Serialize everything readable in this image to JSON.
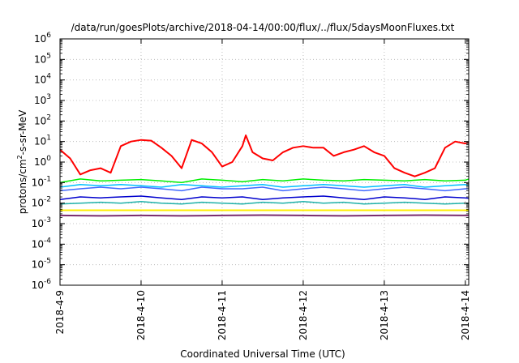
{
  "chart_data": {
    "type": "line",
    "title": "/data/run/goesPlots/archive/2018-04-14/00:00/flux/../flux/5daysMoonFluxes.txt",
    "xlabel": "Coordinated Universal Time (UTC)",
    "ylabel_parts": {
      "pre": "protons/cm",
      "sup": "2",
      "post": "-s-sr-MeV"
    },
    "y_scale": "log",
    "ylim": [
      1e-06,
      1000000.0
    ],
    "y_ticks": [
      {
        "base": "10",
        "exp": "-6",
        "value": 1e-06
      },
      {
        "base": "10",
        "exp": "-5",
        "value": 1e-05
      },
      {
        "base": "10",
        "exp": "-4",
        "value": 0.0001
      },
      {
        "base": "10",
        "exp": "-3",
        "value": 0.001
      },
      {
        "base": "10",
        "exp": "-2",
        "value": 0.01
      },
      {
        "base": "10",
        "exp": "-1",
        "value": 0.1
      },
      {
        "base": "10",
        "exp": "0",
        "value": 1
      },
      {
        "base": "10",
        "exp": "1",
        "value": 10
      },
      {
        "base": "10",
        "exp": "2",
        "value": 100
      },
      {
        "base": "10",
        "exp": "3",
        "value": 1000
      },
      {
        "base": "10",
        "exp": "4",
        "value": 10000
      },
      {
        "base": "10",
        "exp": "5",
        "value": 100000
      },
      {
        "base": "10",
        "exp": "6",
        "value": 1000000
      }
    ],
    "x_range_days": [
      "2018-04-09",
      "2018-04-14T01:00"
    ],
    "x_ticks": [
      {
        "label": "2018-4-9",
        "date": "2018-04-09"
      },
      {
        "label": "2018-4-10",
        "date": "2018-04-10"
      },
      {
        "label": "2018-4-11",
        "date": "2018-04-11"
      },
      {
        "label": "2018-4-12",
        "date": "2018-04-12"
      },
      {
        "label": "2018-4-13",
        "date": "2018-04-13"
      },
      {
        "label": "2018-4-14",
        "date": "2018-04-14"
      }
    ],
    "grid": true,
    "series": [
      {
        "color": "#ff0000",
        "width": 2,
        "x": [
          "2018-04-09T00:00",
          "2018-04-09T03:00",
          "2018-04-09T06:00",
          "2018-04-09T09:00",
          "2018-04-09T12:00",
          "2018-04-09T15:00",
          "2018-04-09T18:00",
          "2018-04-09T21:00",
          "2018-04-10T00:00",
          "2018-04-10T03:00",
          "2018-04-10T06:00",
          "2018-04-10T09:00",
          "2018-04-10T12:00",
          "2018-04-10T15:00",
          "2018-04-10T18:00",
          "2018-04-10T21:00",
          "2018-04-11T00:00",
          "2018-04-11T03:00",
          "2018-04-11T06:00",
          "2018-04-11T07:00",
          "2018-04-11T09:00",
          "2018-04-11T12:00",
          "2018-04-11T15:00",
          "2018-04-11T18:00",
          "2018-04-11T21:00",
          "2018-04-12T00:00",
          "2018-04-12T03:00",
          "2018-04-12T06:00",
          "2018-04-12T09:00",
          "2018-04-12T12:00",
          "2018-04-12T15:00",
          "2018-04-12T18:00",
          "2018-04-12T21:00",
          "2018-04-13T00:00",
          "2018-04-13T03:00",
          "2018-04-13T06:00",
          "2018-04-13T09:00",
          "2018-04-13T12:00",
          "2018-04-13T15:00",
          "2018-04-13T18:00",
          "2018-04-13T21:00",
          "2018-04-14T00:00",
          "2018-04-14T01:00"
        ],
        "values": [
          4,
          1.5,
          0.25,
          0.4,
          0.5,
          0.3,
          6,
          10,
          12,
          11,
          5,
          2,
          0.5,
          12,
          8,
          3,
          0.6,
          1,
          6,
          20,
          3,
          1.5,
          1.2,
          3,
          5,
          6,
          5,
          5,
          2,
          3,
          4,
          6,
          3,
          2,
          0.5,
          0.3,
          0.2,
          0.3,
          0.5,
          5,
          10,
          8,
          9
        ]
      },
      {
        "color": "#00ee00",
        "width": 1.5,
        "x": [
          "2018-04-09T00:00",
          "2018-04-09T06:00",
          "2018-04-09T12:00",
          "2018-04-09T18:00",
          "2018-04-10T00:00",
          "2018-04-10T06:00",
          "2018-04-10T12:00",
          "2018-04-10T18:00",
          "2018-04-11T00:00",
          "2018-04-11T06:00",
          "2018-04-11T12:00",
          "2018-04-11T18:00",
          "2018-04-12T00:00",
          "2018-04-12T06:00",
          "2018-04-12T12:00",
          "2018-04-12T18:00",
          "2018-04-13T00:00",
          "2018-04-13T06:00",
          "2018-04-13T12:00",
          "2018-04-13T18:00",
          "2018-04-14T00:00",
          "2018-04-14T01:00"
        ],
        "values": [
          0.1,
          0.15,
          0.12,
          0.13,
          0.14,
          0.12,
          0.1,
          0.15,
          0.13,
          0.11,
          0.14,
          0.12,
          0.15,
          0.13,
          0.12,
          0.14,
          0.13,
          0.12,
          0.14,
          0.12,
          0.13,
          0.15
        ]
      },
      {
        "color": "#00bfff",
        "width": 1.5,
        "x": [
          "2018-04-09T00:00",
          "2018-04-09T06:00",
          "2018-04-09T12:00",
          "2018-04-09T18:00",
          "2018-04-10T00:00",
          "2018-04-10T06:00",
          "2018-04-10T12:00",
          "2018-04-10T18:00",
          "2018-04-11T00:00",
          "2018-04-11T06:00",
          "2018-04-11T12:00",
          "2018-04-11T18:00",
          "2018-04-12T00:00",
          "2018-04-12T06:00",
          "2018-04-12T12:00",
          "2018-04-12T18:00",
          "2018-04-13T00:00",
          "2018-04-13T06:00",
          "2018-04-13T12:00",
          "2018-04-13T18:00",
          "2018-04-14T00:00",
          "2018-04-14T01:00"
        ],
        "values": [
          0.06,
          0.08,
          0.07,
          0.08,
          0.07,
          0.06,
          0.08,
          0.07,
          0.06,
          0.07,
          0.08,
          0.06,
          0.07,
          0.08,
          0.07,
          0.06,
          0.07,
          0.08,
          0.06,
          0.07,
          0.08,
          0.07
        ]
      },
      {
        "color": "#4169ff",
        "width": 1.5,
        "x": [
          "2018-04-09T00:00",
          "2018-04-09T06:00",
          "2018-04-09T12:00",
          "2018-04-09T18:00",
          "2018-04-10T00:00",
          "2018-04-10T06:00",
          "2018-04-10T12:00",
          "2018-04-10T18:00",
          "2018-04-11T00:00",
          "2018-04-11T06:00",
          "2018-04-11T12:00",
          "2018-04-11T18:00",
          "2018-04-12T00:00",
          "2018-04-12T06:00",
          "2018-04-12T12:00",
          "2018-04-12T18:00",
          "2018-04-13T00:00",
          "2018-04-13T06:00",
          "2018-04-13T12:00",
          "2018-04-13T18:00",
          "2018-04-14T00:00",
          "2018-04-14T01:00"
        ],
        "values": [
          0.04,
          0.05,
          0.06,
          0.05,
          0.06,
          0.05,
          0.04,
          0.06,
          0.05,
          0.05,
          0.06,
          0.04,
          0.05,
          0.06,
          0.05,
          0.04,
          0.05,
          0.06,
          0.05,
          0.04,
          0.05,
          0.05
        ]
      },
      {
        "color": "#0000cd",
        "width": 1.5,
        "x": [
          "2018-04-09T00:00",
          "2018-04-09T06:00",
          "2018-04-09T12:00",
          "2018-04-09T18:00",
          "2018-04-10T00:00",
          "2018-04-10T06:00",
          "2018-04-10T12:00",
          "2018-04-10T18:00",
          "2018-04-11T00:00",
          "2018-04-11T06:00",
          "2018-04-11T12:00",
          "2018-04-11T18:00",
          "2018-04-12T00:00",
          "2018-04-12T06:00",
          "2018-04-12T12:00",
          "2018-04-12T18:00",
          "2018-04-13T00:00",
          "2018-04-13T06:00",
          "2018-04-13T12:00",
          "2018-04-13T18:00",
          "2018-04-14T00:00",
          "2018-04-14T01:00"
        ],
        "values": [
          0.015,
          0.02,
          0.018,
          0.02,
          0.022,
          0.018,
          0.015,
          0.02,
          0.018,
          0.02,
          0.015,
          0.018,
          0.02,
          0.022,
          0.018,
          0.015,
          0.02,
          0.018,
          0.015,
          0.02,
          0.018,
          0.017
        ]
      },
      {
        "color": "#20b2aa",
        "width": 1.5,
        "x": [
          "2018-04-09T00:00",
          "2018-04-09T06:00",
          "2018-04-09T12:00",
          "2018-04-09T18:00",
          "2018-04-10T00:00",
          "2018-04-10T06:00",
          "2018-04-10T12:00",
          "2018-04-10T18:00",
          "2018-04-11T00:00",
          "2018-04-11T06:00",
          "2018-04-11T12:00",
          "2018-04-11T18:00",
          "2018-04-12T00:00",
          "2018-04-12T06:00",
          "2018-04-12T12:00",
          "2018-04-12T18:00",
          "2018-04-13T00:00",
          "2018-04-13T06:00",
          "2018-04-13T12:00",
          "2018-04-13T18:00",
          "2018-04-14T00:00",
          "2018-04-14T01:00"
        ],
        "values": [
          0.009,
          0.01,
          0.011,
          0.01,
          0.012,
          0.01,
          0.009,
          0.011,
          0.01,
          0.009,
          0.011,
          0.01,
          0.012,
          0.01,
          0.011,
          0.009,
          0.01,
          0.011,
          0.01,
          0.009,
          0.01,
          0.01
        ]
      },
      {
        "color": "#ffee00",
        "width": 2,
        "x": [
          "2018-04-09T00:00",
          "2018-04-10T00:00",
          "2018-04-11T00:00",
          "2018-04-12T00:00",
          "2018-04-13T00:00",
          "2018-04-14T00:00",
          "2018-04-14T01:00"
        ],
        "values": [
          0.0045,
          0.0045,
          0.0045,
          0.0045,
          0.0045,
          0.0045,
          0.0045
        ]
      },
      {
        "color": "#7b2d6e",
        "width": 2,
        "x": [
          "2018-04-09T00:00",
          "2018-04-09T12:00",
          "2018-04-10T00:00",
          "2018-04-10T12:00",
          "2018-04-11T00:00",
          "2018-04-11T12:00",
          "2018-04-12T00:00",
          "2018-04-12T12:00",
          "2018-04-13T00:00",
          "2018-04-13T12:00",
          "2018-04-14T00:00",
          "2018-04-14T01:00"
        ],
        "values": [
          0.0025,
          0.0024,
          0.0025,
          0.0024,
          0.0025,
          0.0026,
          0.0025,
          0.0024,
          0.0025,
          0.0026,
          0.0025,
          0.0025
        ]
      }
    ]
  }
}
